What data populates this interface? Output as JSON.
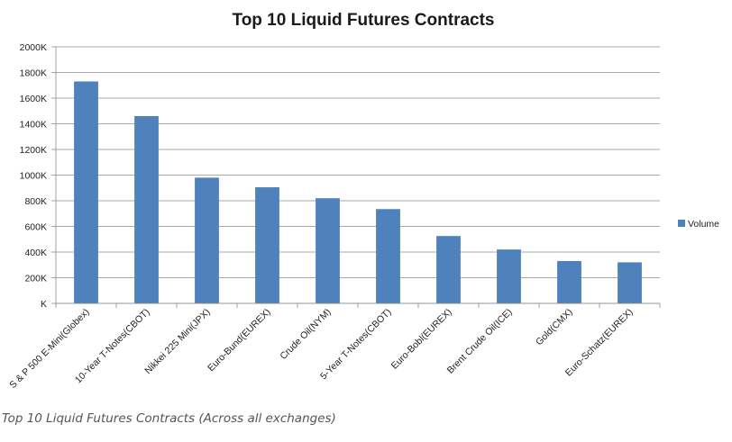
{
  "chart_data": {
    "type": "bar",
    "title": "Top 10 Liquid Futures Contracts",
    "categories": [
      "S & P 500 E-Mini(Globex)",
      "10-Year T-Notes(CBOT)",
      "Nikkei 225 Mini(JPX)",
      "Euro-Bund(EUREX)",
      "Crude Oil(NYM)",
      "5-Year T-Notes(CBOT)",
      "Euro-Bobl(EUREX)",
      "Brent Crude Oil(ICE)",
      "Gold(CMX)",
      "Euro-Schatz(EUREX)"
    ],
    "series": [
      {
        "name": "Volume",
        "values": [
          1730,
          1460,
          980,
          905,
          820,
          735,
          525,
          420,
          330,
          320
        ]
      }
    ],
    "ylim": [
      0,
      2000
    ],
    "yticks": [
      0,
      200,
      400,
      600,
      800,
      1000,
      1200,
      1400,
      1600,
      1800,
      2000
    ],
    "ytick_labels": [
      "K",
      "200K",
      "400K",
      "600K",
      "800K",
      "1000K",
      "1200K",
      "1400K",
      "1600K",
      "1800K",
      "2000K"
    ],
    "xlabel": "",
    "ylabel": "",
    "grid": true,
    "legend_position": "right",
    "bar_color": "#4f81bd"
  },
  "caption": "Top 10 Liquid Futures Contracts (Across all exchanges)"
}
